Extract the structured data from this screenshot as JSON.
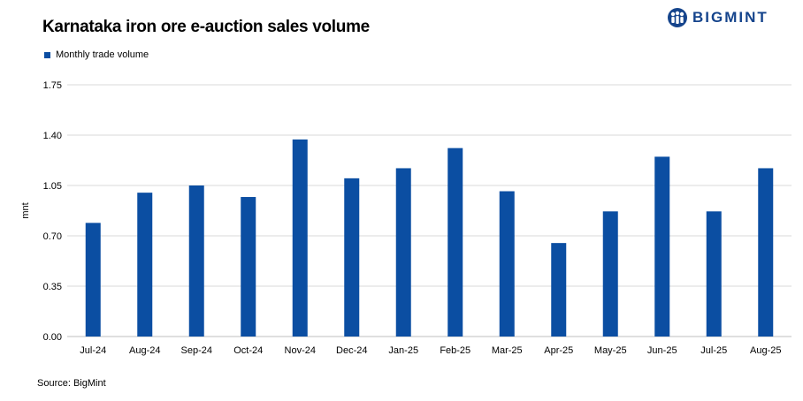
{
  "header": {
    "title": "Karnataka iron ore e-auction sales volume",
    "brand": "BIGMINT",
    "brand_icon": "people-group-icon"
  },
  "footer": {
    "source": "Source: BigMint"
  },
  "colors": {
    "bar": "#0b4ea2",
    "brand": "#15448c",
    "grid": "#d9d9d9",
    "axis": "#bfbfbf"
  },
  "chart_data": {
    "type": "bar",
    "title": "Karnataka iron ore e-auction sales volume",
    "xlabel": "",
    "ylabel": "mnt",
    "ylim": [
      0,
      1.75
    ],
    "yticks": [
      "0.00",
      "0.35",
      "0.70",
      "1.05",
      "1.40",
      "1.75"
    ],
    "grid": true,
    "legend_position": "top-left",
    "categories": [
      "Jul-24",
      "Aug-24",
      "Sep-24",
      "Oct-24",
      "Nov-24",
      "Dec-24",
      "Jan-25",
      "Feb-25",
      "Mar-25",
      "Apr-25",
      "May-25",
      "Jun-25",
      "Jul-25",
      "Aug-25"
    ],
    "series": [
      {
        "name": "Monthly trade volume",
        "values": [
          0.79,
          1.0,
          1.05,
          0.97,
          1.37,
          1.1,
          1.17,
          1.31,
          1.01,
          0.65,
          0.87,
          1.25,
          0.87,
          1.17
        ]
      }
    ]
  }
}
